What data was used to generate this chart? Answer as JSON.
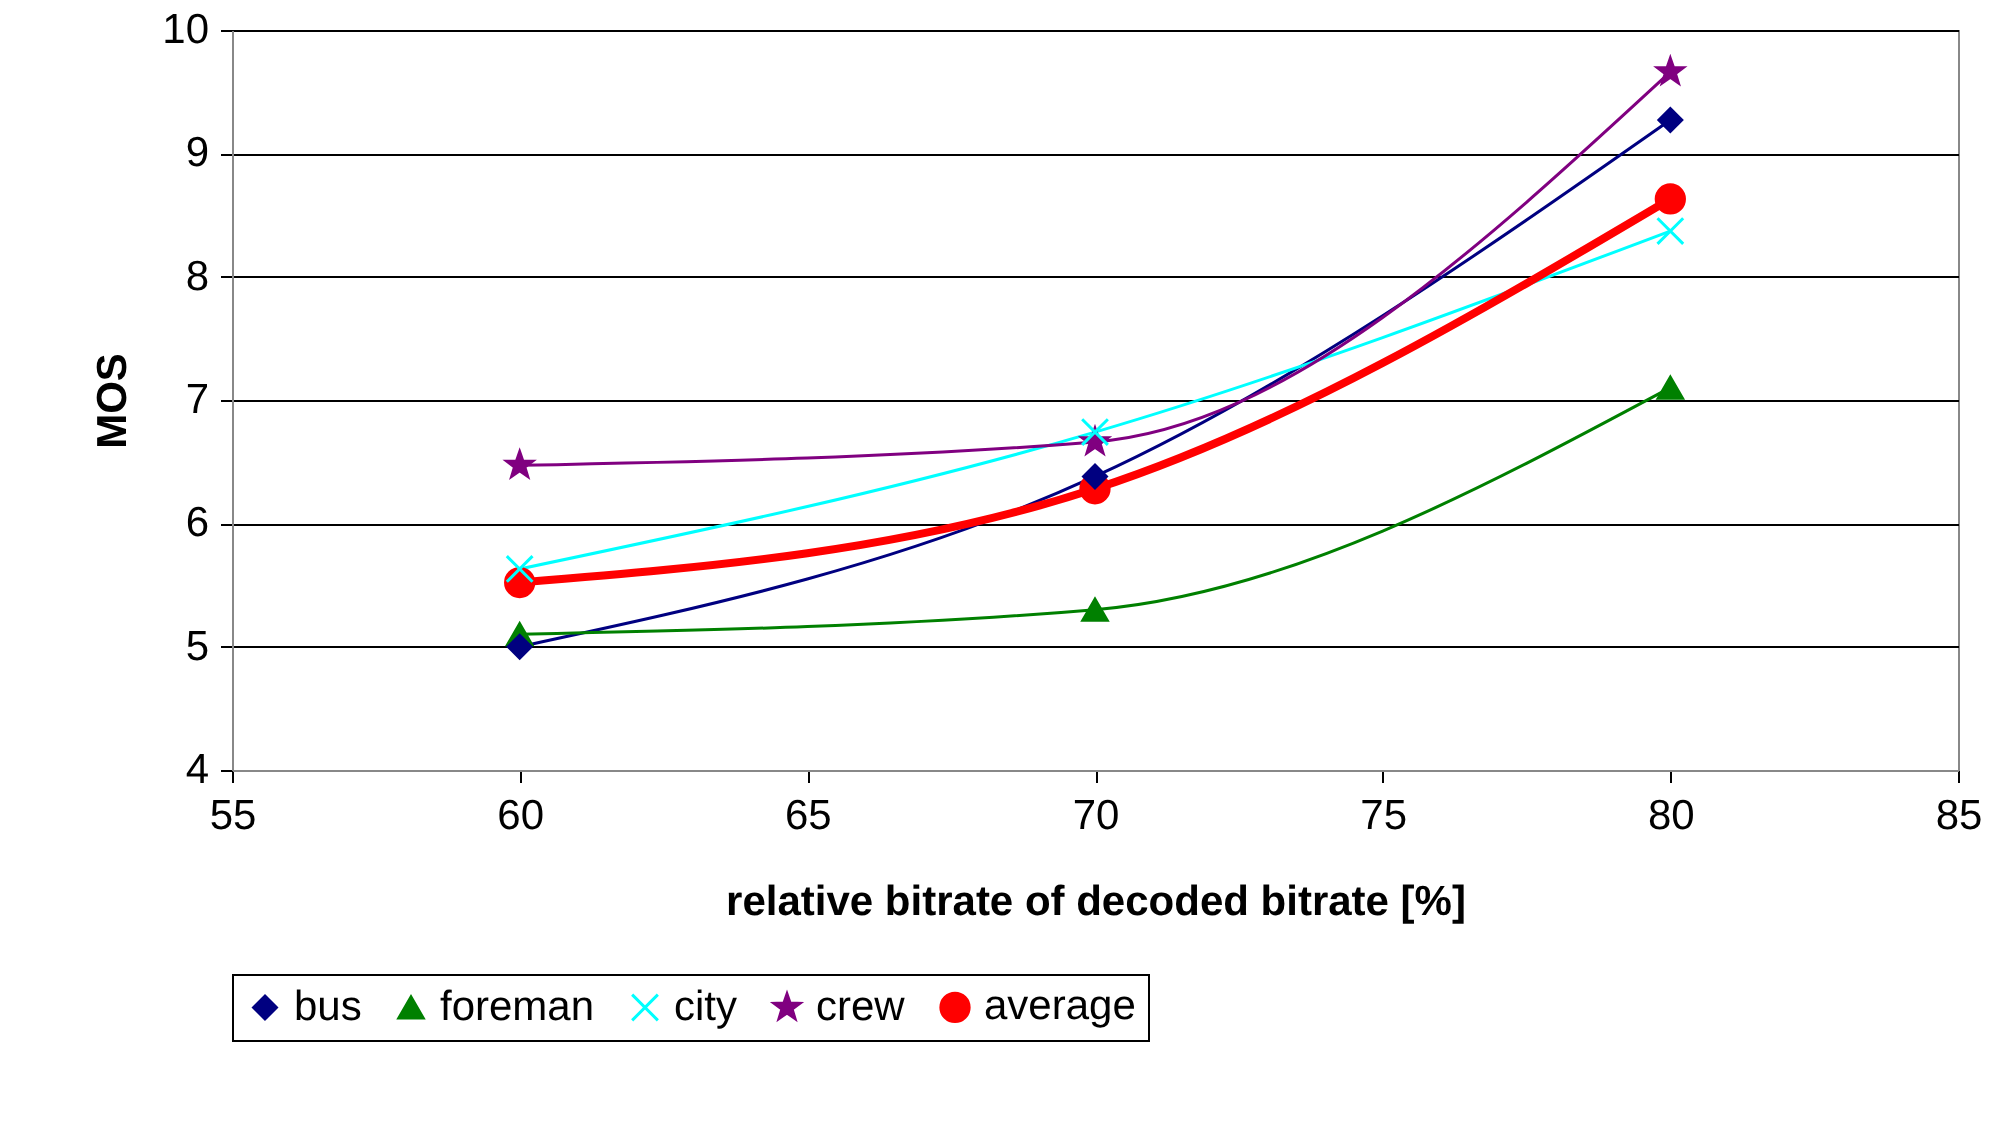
{
  "chart_data": {
    "type": "line",
    "xlabel": "relative bitrate of decoded bitrate [%]",
    "ylabel": "MOS",
    "x": [
      60,
      70,
      80
    ],
    "series": [
      {
        "name": "bus",
        "color": "#000080",
        "marker": "diamond",
        "values": [
          5.0,
          6.38,
          9.27
        ]
      },
      {
        "name": "foreman",
        "color": "#008000",
        "marker": "triangle",
        "values": [
          5.1,
          5.3,
          7.1
        ]
      },
      {
        "name": "city",
        "color": "#00ffff",
        "marker": "cross",
        "values": [
          5.63,
          6.74,
          8.37
        ]
      },
      {
        "name": "crew",
        "color": "#800080",
        "marker": "star",
        "values": [
          6.47,
          6.66,
          9.66
        ]
      },
      {
        "name": "average",
        "color": "#ff0000",
        "marker": "circle",
        "values": [
          5.52,
          6.28,
          8.63
        ]
      }
    ],
    "xlim": [
      55,
      85
    ],
    "xticks": [
      55,
      60,
      65,
      70,
      75,
      80,
      85
    ],
    "ylim": [
      4,
      10
    ],
    "yticks": [
      4,
      5,
      6,
      7,
      8,
      9,
      10
    ],
    "grid": "y",
    "legend": "bottom"
  }
}
